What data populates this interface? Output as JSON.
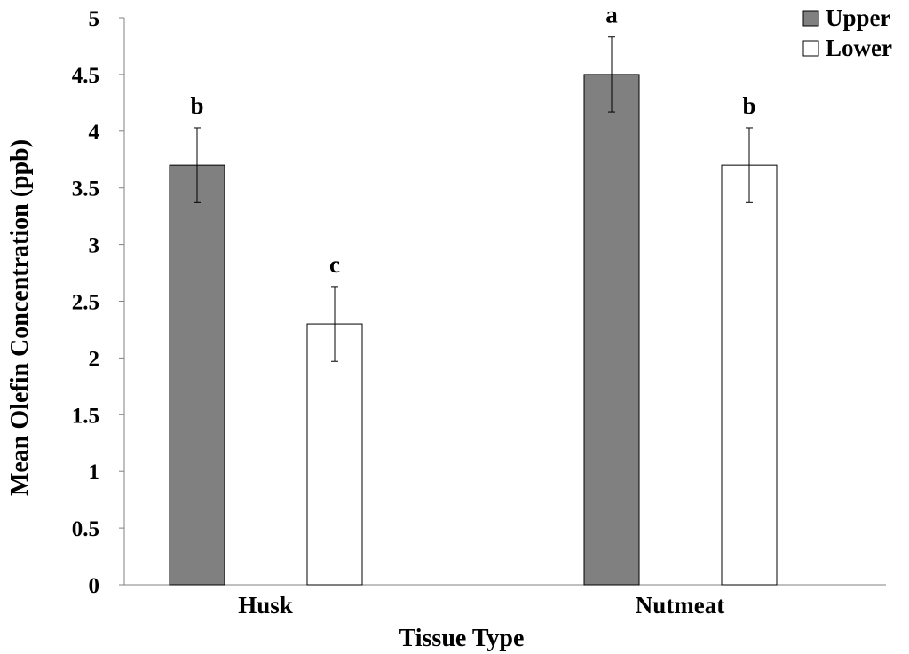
{
  "chart_data": {
    "type": "bar",
    "xlabel": "Tissue Type",
    "ylabel": "Mean Olefin Concentration (ppb)",
    "ylim": [
      0,
      5
    ],
    "yticks": [
      "0",
      "0.5",
      "1",
      "1.5",
      "2",
      "2.5",
      "3",
      "3.5",
      "4",
      "4.5",
      "5"
    ],
    "categories": [
      "Husk",
      "Nutmeat"
    ],
    "series": [
      {
        "name": "Upper",
        "color": "#808080",
        "values": [
          3.7,
          4.5
        ],
        "errors": [
          0.33,
          0.33
        ],
        "letters": [
          "b",
          "a"
        ]
      },
      {
        "name": "Lower",
        "color": "#ffffff",
        "values": [
          2.3,
          3.7
        ],
        "errors": [
          0.33,
          0.33
        ],
        "letters": [
          "c",
          "b"
        ]
      }
    ],
    "grid": false,
    "legend_position": "top-right"
  }
}
